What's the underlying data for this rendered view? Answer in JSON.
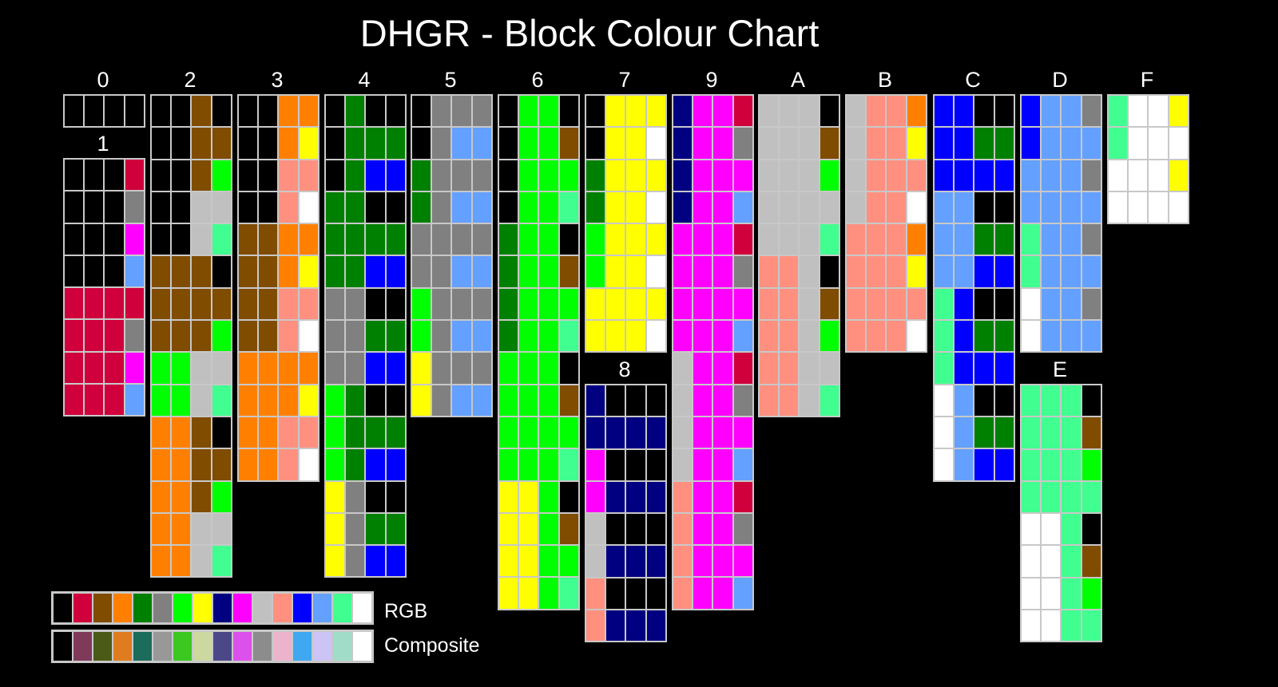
{
  "title": "DHGR - Block Colour Chart",
  "palette": {
    "rgb": [
      "#000000",
      "#d0003c",
      "#7f4c00",
      "#ff8000",
      "#008000",
      "#808080",
      "#00ff00",
      "#ffff00",
      "#000080",
      "#ff00ff",
      "#c0c0c0",
      "#ff9080",
      "#0000ff",
      "#64a0ff",
      "#40ff90",
      "#ffffff"
    ],
    "composite": [
      "#000000",
      "#7f3a5a",
      "#4c5a18",
      "#e07c20",
      "#1c6c5c",
      "#989898",
      "#3cc820",
      "#ccd8a0",
      "#4c4888",
      "#dc50ec",
      "#8c8c8c",
      "#ecb4cc",
      "#40a8f0",
      "#ccc4f4",
      "#a0dcc8",
      "#ffffff"
    ]
  },
  "legend": {
    "rgb_label": "RGB",
    "composite_label": "Composite"
  },
  "groups": [
    {
      "label": "0",
      "rows": [
        "0000"
      ]
    },
    {
      "label": "1",
      "rows": [
        "0001",
        "0005",
        "0009",
        "000D",
        "1111",
        "1115",
        "1119",
        "111D"
      ]
    },
    {
      "label": "2",
      "rows": [
        "0020",
        "0022",
        "0026",
        "00AA",
        "00AE",
        "2220",
        "2222",
        "2226",
        "66AA",
        "66AE",
        "3320",
        "3322",
        "3326",
        "33AA",
        "33AE"
      ]
    },
    {
      "label": "3",
      "rows": [
        "0033",
        "0037",
        "00BB",
        "00BF",
        "2233",
        "2237",
        "22BB",
        "22BF",
        "3333",
        "3337",
        "33BB",
        "33BF"
      ]
    },
    {
      "label": "4",
      "rows": [
        "0400",
        "0444",
        "04CC",
        "4400",
        "4444",
        "44CC",
        "5500",
        "5544",
        "55CC",
        "6400",
        "6444",
        "64CC",
        "7500",
        "7544",
        "75CC"
      ]
    },
    {
      "label": "5",
      "rows": [
        "0555",
        "05DD",
        "4555",
        "45DD",
        "5555",
        "55DD",
        "6555",
        "65DD",
        "7555",
        "75DD"
      ]
    },
    {
      "label": "6",
      "rows": [
        "0660",
        "0662",
        "0666",
        "066E",
        "4660",
        "4662",
        "4666",
        "466E",
        "6660",
        "6662",
        "6666",
        "666E",
        "7760",
        "7762",
        "7766",
        "776E"
      ]
    },
    {
      "label": "7",
      "rows": [
        "0777",
        "077F",
        "4777",
        "477F",
        "6777",
        "677F",
        "7777",
        "777F"
      ]
    },
    {
      "label": "8",
      "rows": [
        "8000",
        "8888",
        "9000",
        "9888",
        "A000",
        "A888",
        "B000",
        "B888"
      ]
    },
    {
      "label": "9",
      "rows": [
        "8991",
        "8995",
        "8999",
        "899D",
        "9991",
        "9995",
        "9999",
        "999D",
        "A991",
        "A995",
        "A999",
        "A99D",
        "B991",
        "B995",
        "B999",
        "B99D"
      ]
    },
    {
      "label": "A",
      "rows": [
        "AAA0",
        "AAA2",
        "AAA6",
        "AAAA",
        "AAAE",
        "BBA0",
        "BBA2",
        "BBA6",
        "BBAA",
        "BBAE"
      ]
    },
    {
      "label": "B",
      "rows": [
        "ABB3",
        "ABB7",
        "ABBB",
        "ABBF",
        "BBB3",
        "BBB7",
        "BBBB",
        "BBBF"
      ]
    },
    {
      "label": "C",
      "rows": [
        "CC00",
        "CC44",
        "CCCC",
        "DD00",
        "DD44",
        "DDCC",
        "EC00",
        "EC44",
        "ECCC",
        "FD00",
        "FD44",
        "FDCC"
      ]
    },
    {
      "label": "D",
      "rows": [
        "CDD5",
        "CDDD",
        "DDD5",
        "DDDD",
        "EDD5",
        "EDDD",
        "FDD5",
        "FDDD"
      ]
    },
    {
      "label": "E",
      "rows": [
        "EEE0",
        "EEE2",
        "EEE6",
        "EEEE",
        "FFE0",
        "FFE2",
        "FFE6",
        "FFEE"
      ]
    },
    {
      "label": "F",
      "rows": [
        "EFF7",
        "EFFF",
        "FFF7",
        "FFFF"
      ]
    }
  ]
}
